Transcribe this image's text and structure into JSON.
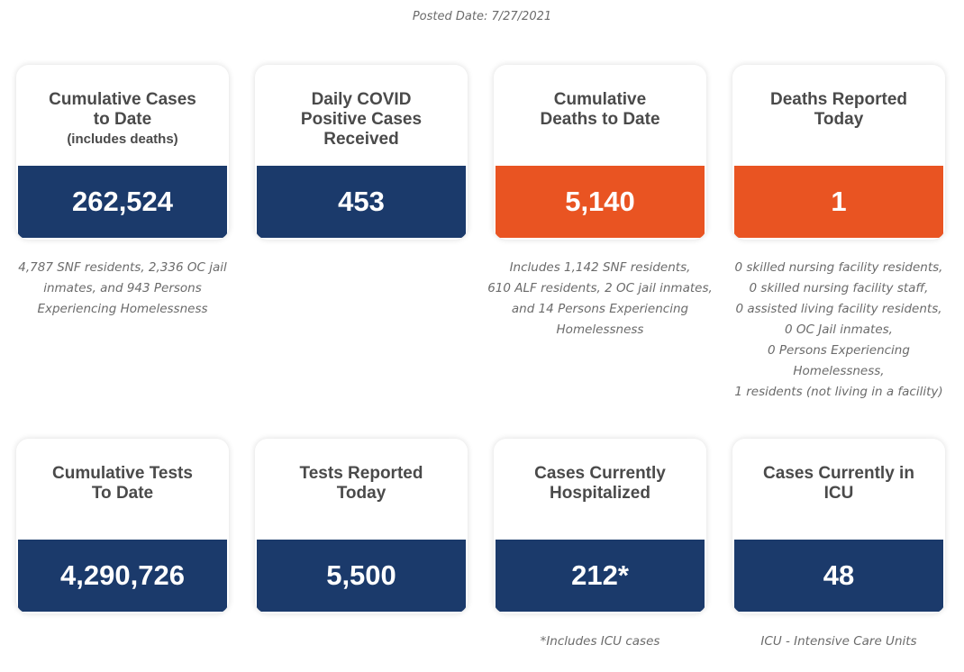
{
  "posted_date": "Posted Date: 7/27/2021",
  "row1": [
    {
      "title_lines": [
        "Cumulative Cases",
        "to Date"
      ],
      "subtitle": "(includes deaths)",
      "value": "262,524",
      "color": "#1b3a6b",
      "note_lines": [
        "4,787 SNF residents, 2,336 OC jail",
        "inmates, and 943 Persons",
        "Experiencing Homelessness"
      ]
    },
    {
      "title_lines": [
        "Daily COVID",
        "Positive Cases",
        "Received"
      ],
      "subtitle": "",
      "value": "453",
      "color": "#1b3a6b",
      "note_lines": []
    },
    {
      "title_lines": [
        "Cumulative",
        "Deaths to Date"
      ],
      "subtitle": "",
      "value": "5,140",
      "color": "#e95422",
      "note_lines": [
        "Includes 1,142 SNF residents,",
        "610 ALF residents, 2 OC jail inmates,",
        "and 14 Persons Experiencing",
        "Homelessness"
      ]
    },
    {
      "title_lines": [
        "Deaths Reported",
        "Today"
      ],
      "subtitle": "",
      "value": "1",
      "color": "#e95422",
      "note_lines": [
        "0 skilled nursing facility residents,",
        "0 skilled nursing facility staff,",
        "0 assisted living facility residents,",
        "0 OC Jail inmates,",
        "0 Persons Experiencing",
        "Homelessness,",
        "1 residents (not living in a facility)"
      ]
    }
  ],
  "row2": [
    {
      "title_lines": [
        "Cumulative Tests",
        "To Date"
      ],
      "subtitle": "",
      "value": "4,290,726",
      "color": "#1b3a6b",
      "note_lines": []
    },
    {
      "title_lines": [
        "Tests Reported",
        "Today"
      ],
      "subtitle": "",
      "value": "5,500",
      "color": "#1b3a6b",
      "note_lines": []
    },
    {
      "title_lines": [
        "Cases Currently",
        "Hospitalized"
      ],
      "subtitle": "",
      "value": "212*",
      "color": "#1b3a6b",
      "note_lines": [
        "*Includes ICU cases"
      ]
    },
    {
      "title_lines": [
        "Cases Currently in",
        "ICU"
      ],
      "subtitle": "",
      "value": "48",
      "color": "#1b3a6b",
      "note_lines": [
        "ICU - Intensive Care Units"
      ]
    }
  ]
}
